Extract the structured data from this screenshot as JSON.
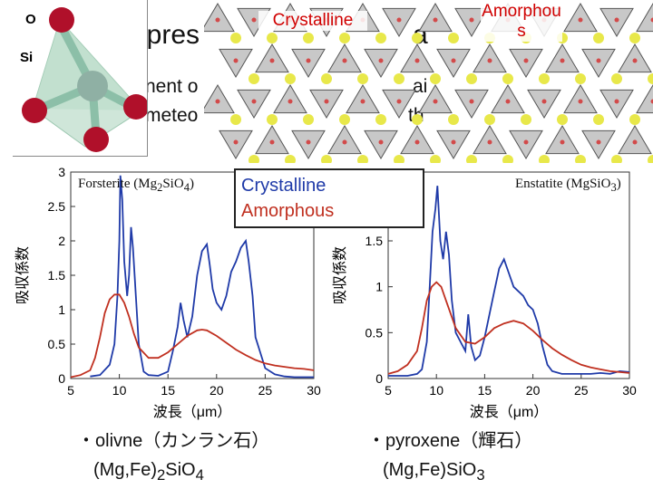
{
  "slide": {
    "title_fragments": [
      "epres",
      "a"
    ],
    "body_fragments": [
      "nent o",
      "ai",
      "meteo",
      "th"
    ]
  },
  "lattice": {
    "crystalline_label": "Crystalline",
    "amorphous_label": "Amorphou s",
    "colors": {
      "tetra_face": "#c8c8c8",
      "tetra_edge": "#555555",
      "oxygen": "#d24a4a",
      "cation": "#e8e84a"
    }
  },
  "tetrahedron": {
    "o_label": "O",
    "si_label": "Si",
    "colors": {
      "oxygen": "#b0102a",
      "silicon": "#8fb0a4",
      "bond": "#8cbfa8"
    }
  },
  "legend": {
    "crystalline": "Crystalline",
    "amorphous": "Amorphous",
    "colors": {
      "crystalline": "#1f3aa8",
      "amorphous": "#c03020"
    }
  },
  "chart_data": [
    {
      "type": "line",
      "title": "Forsterite (Mg2SiO4)",
      "title_parts": {
        "name": "Forsterite (Mg",
        "sub1": "2",
        "mid": "Si",
        "mid2": "O",
        "sub2": "4",
        "end": ")"
      },
      "xlabel": "波長（μm）",
      "ylabel": "吸収係数",
      "xlim": [
        5,
        30
      ],
      "ylim": [
        0,
        3
      ],
      "xticks": [
        5,
        10,
        15,
        20,
        25,
        30
      ],
      "yticks": [
        0,
        0.5,
        1,
        1.5,
        2,
        2.5,
        3
      ],
      "ytick_labels": [
        "0",
        "0.5",
        "1",
        "1.5",
        "2",
        "2.5",
        "3"
      ],
      "series": [
        {
          "name": "Crystalline",
          "color": "#1f3aa8",
          "x": [
            7,
            8,
            9,
            9.5,
            9.8,
            10.0,
            10.1,
            10.3,
            10.5,
            10.8,
            11.0,
            11.2,
            11.4,
            11.7,
            12.0,
            12.5,
            13,
            14,
            15,
            15.5,
            16,
            16.3,
            16.6,
            17,
            17.5,
            18,
            18.5,
            19,
            19.3,
            19.6,
            20,
            20.5,
            21,
            21.5,
            22,
            22.5,
            23,
            23.3,
            23.7,
            24,
            25,
            26,
            27,
            28,
            29,
            30
          ],
          "y": [
            0.03,
            0.05,
            0.2,
            0.5,
            1.2,
            2.0,
            2.95,
            2.6,
            1.7,
            1.2,
            1.5,
            2.2,
            1.9,
            1.2,
            0.5,
            0.1,
            0.05,
            0.04,
            0.1,
            0.4,
            0.75,
            1.1,
            0.85,
            0.6,
            0.9,
            1.5,
            1.85,
            1.95,
            1.65,
            1.3,
            1.1,
            1.0,
            1.2,
            1.55,
            1.7,
            1.9,
            2.0,
            1.7,
            1.2,
            0.6,
            0.15,
            0.06,
            0.03,
            0.02,
            0.02,
            0.02
          ]
        },
        {
          "name": "Amorphous",
          "color": "#c03020",
          "x": [
            5,
            6,
            7,
            7.5,
            8,
            8.5,
            9,
            9.5,
            10,
            10.5,
            11,
            11.5,
            12,
            13,
            14,
            15,
            16,
            17,
            18,
            18.5,
            19,
            20,
            21,
            22,
            23,
            24,
            25,
            26,
            27,
            28,
            29,
            30
          ],
          "y": [
            0.02,
            0.05,
            0.12,
            0.3,
            0.6,
            0.95,
            1.15,
            1.22,
            1.22,
            1.1,
            0.9,
            0.65,
            0.45,
            0.3,
            0.3,
            0.38,
            0.5,
            0.62,
            0.7,
            0.71,
            0.7,
            0.62,
            0.52,
            0.42,
            0.34,
            0.27,
            0.22,
            0.19,
            0.17,
            0.15,
            0.14,
            0.12
          ]
        }
      ]
    },
    {
      "type": "line",
      "title": "Enstatite (MgSiO3)",
      "title_parts": {
        "name": "Enstatite (Mg",
        "mid": "Si",
        "mid2": "O",
        "sub2": "3",
        "end": ")"
      },
      "xlabel": "波長（μm）",
      "ylabel": "吸収係数",
      "xlim": [
        5,
        30
      ],
      "ylim": [
        0,
        2.25
      ],
      "xticks": [
        5,
        10,
        15,
        20,
        25,
        30
      ],
      "yticks": [
        0,
        0.5,
        1,
        1.5
      ],
      "ytick_labels": [
        "0",
        "0.5",
        "1",
        "1.5"
      ],
      "series": [
        {
          "name": "Crystalline",
          "color": "#1f3aa8",
          "x": [
            5,
            7,
            8,
            8.5,
            9,
            9.3,
            9.6,
            9.9,
            10.1,
            10.4,
            10.7,
            11.0,
            11.3,
            11.6,
            12.0,
            12.5,
            13,
            13.3,
            13.6,
            14,
            14.5,
            15,
            15.5,
            16,
            16.5,
            17,
            17.5,
            18,
            18.5,
            19,
            19.5,
            20,
            20.5,
            21,
            21.5,
            22,
            23,
            24,
            25,
            26,
            27,
            28,
            29,
            30
          ],
          "y": [
            0.03,
            0.03,
            0.05,
            0.1,
            0.4,
            1.0,
            1.6,
            1.85,
            2.1,
            1.5,
            1.3,
            1.6,
            1.35,
            0.85,
            0.5,
            0.4,
            0.3,
            0.7,
            0.35,
            0.2,
            0.25,
            0.45,
            0.7,
            0.95,
            1.2,
            1.3,
            1.15,
            1.0,
            0.95,
            0.9,
            0.8,
            0.75,
            0.6,
            0.35,
            0.15,
            0.08,
            0.05,
            0.05,
            0.05,
            0.05,
            0.06,
            0.05,
            0.08,
            0.07
          ]
        },
        {
          "name": "Amorphous",
          "color": "#c03020",
          "x": [
            5,
            6,
            7,
            8,
            8.5,
            9,
            9.5,
            10,
            10.5,
            11,
            12,
            13,
            14,
            15,
            16,
            17,
            18,
            19,
            20,
            21,
            22,
            23,
            24,
            25,
            26,
            27,
            28,
            29,
            30
          ],
          "y": [
            0.05,
            0.08,
            0.15,
            0.3,
            0.55,
            0.85,
            1.0,
            1.05,
            1.0,
            0.85,
            0.55,
            0.4,
            0.38,
            0.45,
            0.55,
            0.6,
            0.63,
            0.6,
            0.52,
            0.42,
            0.33,
            0.26,
            0.2,
            0.15,
            0.12,
            0.1,
            0.08,
            0.07,
            0.06
          ]
        }
      ]
    }
  ],
  "captions": {
    "left_line1": "・olivne（カンラン石）",
    "left_formula": {
      "pre": "(Mg,Fe)",
      "sub": "2",
      "post": "SiO",
      "sub2": "4"
    },
    "right_line1": "・pyroxene（輝石）",
    "right_formula": {
      "pre": "(Mg,Fe)SiO",
      "sub": "3"
    }
  }
}
